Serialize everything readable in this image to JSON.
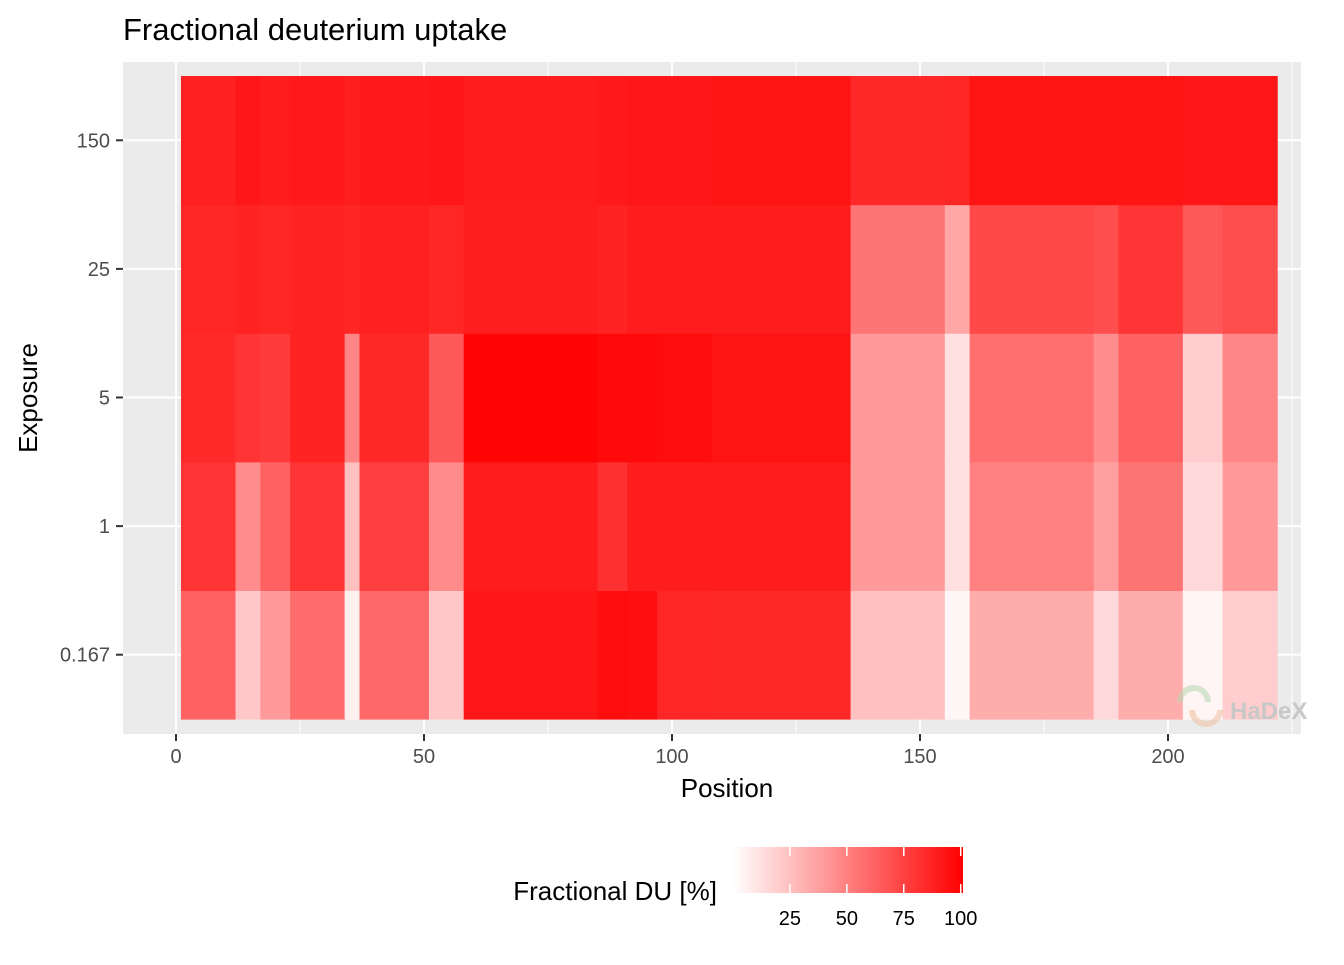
{
  "chart_data": {
    "type": "heatmap",
    "title": "Fractional deuterium uptake",
    "xlabel": "Position",
    "ylabel": "Exposure",
    "x_ticks": [
      0,
      50,
      100,
      150,
      200
    ],
    "xlim": [
      0,
      225
    ],
    "y_categories": [
      "0.167",
      "1",
      "5",
      "25",
      "150"
    ],
    "colorbar": {
      "title": "Fractional DU [%]",
      "ticks": [
        25,
        50,
        75,
        100
      ],
      "range": [
        0,
        101
      ],
      "low_color": "#ffffff",
      "high_color": "#ff0000"
    },
    "grid": true,
    "legend_position": "bottom",
    "segments": [
      {
        "start": 1,
        "end": 12,
        "values": [
          62,
          80,
          84,
          86,
          88
        ]
      },
      {
        "start": 12,
        "end": 17,
        "values": [
          22,
          45,
          80,
          87,
          92
        ]
      },
      {
        "start": 17,
        "end": 23,
        "values": [
          40,
          62,
          78,
          86,
          90
        ]
      },
      {
        "start": 23,
        "end": 34,
        "values": [
          58,
          80,
          87,
          87,
          91
        ]
      },
      {
        "start": 34,
        "end": 37,
        "values": [
          6,
          25,
          48,
          86,
          89
        ]
      },
      {
        "start": 37,
        "end": 51,
        "values": [
          60,
          76,
          85,
          88,
          91
        ]
      },
      {
        "start": 51,
        "end": 58,
        "values": [
          22,
          46,
          66,
          86,
          92
        ]
      },
      {
        "start": 58,
        "end": 85,
        "values": [
          92,
          90,
          99,
          89,
          90
        ]
      },
      {
        "start": 85,
        "end": 91,
        "values": [
          96,
          82,
          97,
          87,
          91
        ]
      },
      {
        "start": 91,
        "end": 97,
        "values": [
          95,
          90,
          97,
          90,
          92
        ]
      },
      {
        "start": 97,
        "end": 108,
        "values": [
          86,
          90,
          96,
          90,
          92
        ]
      },
      {
        "start": 108,
        "end": 136,
        "values": [
          85,
          90,
          93,
          90,
          93
        ]
      },
      {
        "start": 136,
        "end": 155,
        "values": [
          25,
          40,
          40,
          55,
          85
        ]
      },
      {
        "start": 155,
        "end": 160,
        "values": [
          3,
          12,
          12,
          35,
          86
        ]
      },
      {
        "start": 160,
        "end": 185,
        "values": [
          33,
          50,
          57,
          72,
          93
        ]
      },
      {
        "start": 185,
        "end": 190,
        "values": [
          15,
          38,
          45,
          70,
          93
        ]
      },
      {
        "start": 190,
        "end": 203,
        "values": [
          33,
          55,
          62,
          80,
          93
        ]
      },
      {
        "start": 203,
        "end": 211,
        "values": [
          4,
          15,
          20,
          66,
          92
        ]
      },
      {
        "start": 211,
        "end": 222,
        "values": [
          20,
          40,
          48,
          70,
          92
        ]
      }
    ],
    "watermark": "HaDeX"
  }
}
